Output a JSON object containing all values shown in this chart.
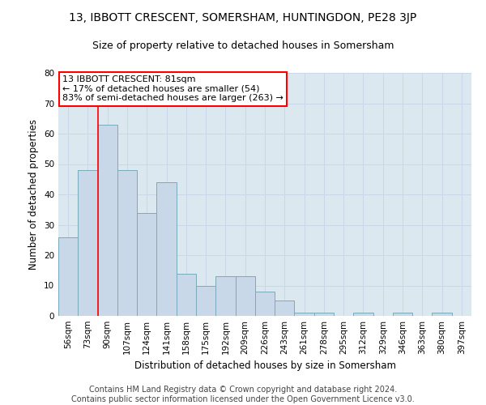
{
  "title": "13, IBBOTT CRESCENT, SOMERSHAM, HUNTINGDON, PE28 3JP",
  "subtitle": "Size of property relative to detached houses in Somersham",
  "xlabel": "Distribution of detached houses by size in Somersham",
  "ylabel": "Number of detached properties",
  "categories": [
    "56sqm",
    "73sqm",
    "90sqm",
    "107sqm",
    "124sqm",
    "141sqm",
    "158sqm",
    "175sqm",
    "192sqm",
    "209sqm",
    "226sqm",
    "243sqm",
    "261sqm",
    "278sqm",
    "295sqm",
    "312sqm",
    "329sqm",
    "346sqm",
    "363sqm",
    "380sqm",
    "397sqm"
  ],
  "values": [
    26,
    48,
    63,
    48,
    34,
    44,
    14,
    10,
    13,
    13,
    8,
    5,
    1,
    1,
    0,
    1,
    0,
    1,
    0,
    1,
    0
  ],
  "bar_color": "#c8d8e8",
  "bar_edge_color": "#7aaabb",
  "property_line_bar_index": 1,
  "annotation_text": "13 IBBOTT CRESCENT: 81sqm\n← 17% of detached houses are smaller (54)\n83% of semi-detached houses are larger (263) →",
  "annotation_box_color": "white",
  "annotation_box_edge": "red",
  "red_line_color": "red",
  "ylim": [
    0,
    80
  ],
  "yticks": [
    0,
    10,
    20,
    30,
    40,
    50,
    60,
    70,
    80
  ],
  "grid_color": "#c8d8e8",
  "background_color": "#dce8f0",
  "footer": "Contains HM Land Registry data © Crown copyright and database right 2024.\nContains public sector information licensed under the Open Government Licence v3.0.",
  "title_fontsize": 10,
  "subtitle_fontsize": 9,
  "xlabel_fontsize": 8.5,
  "ylabel_fontsize": 8.5,
  "footer_fontsize": 7,
  "tick_fontsize": 7.5,
  "annotation_fontsize": 8
}
